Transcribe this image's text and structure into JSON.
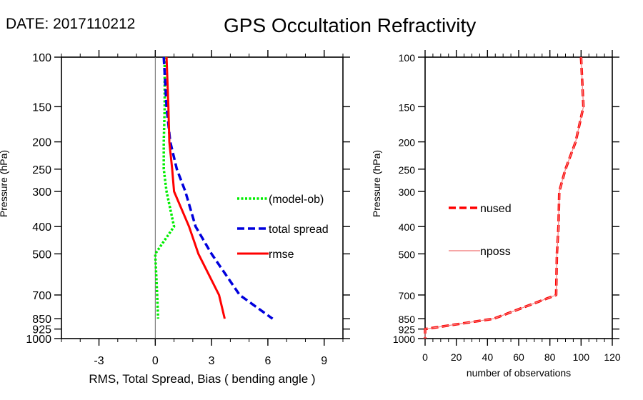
{
  "header": {
    "date_label": "DATE: 2017110212",
    "title": "GPS Occultation Refractivity"
  },
  "chart_data": [
    {
      "type": "line",
      "name": "error-profile",
      "xlabel": "RMS, Total Spread, Bias ( bending angle )",
      "ylabel": "Pressure (hPa)",
      "xlim": [
        -5,
        10
      ],
      "ylim": [
        1000,
        100
      ],
      "yscale": "log",
      "x_ticks": [
        -3,
        0,
        3,
        6,
        9
      ],
      "x_minor_step": 1,
      "y_ticks": [
        100,
        150,
        200,
        250,
        300,
        400,
        500,
        700,
        850,
        925,
        1000
      ],
      "zero_line": true,
      "legend_placement": "center-right",
      "pressure": [
        100,
        150,
        200,
        250,
        300,
        400,
        500,
        700,
        850
      ],
      "series": [
        {
          "name": "(model-ob)",
          "color": "#00ee00",
          "style": "dotted",
          "values": [
            0.5,
            0.5,
            0.45,
            0.45,
            0.6,
            1.0,
            0.0,
            0.1,
            0.15
          ]
        },
        {
          "name": "total spread",
          "color": "#0000dd",
          "style": "dashed",
          "values": [
            0.45,
            0.6,
            0.8,
            1.15,
            1.6,
            2.15,
            3.0,
            4.5,
            6.25
          ]
        },
        {
          "name": "rmse",
          "color": "#ff0000",
          "style": "solid",
          "values": [
            0.6,
            0.7,
            0.75,
            0.9,
            1.0,
            1.8,
            2.3,
            3.4,
            3.7
          ]
        }
      ]
    },
    {
      "type": "line",
      "name": "observation-count",
      "xlabel": "number of observations",
      "ylabel": "Pressure (hPa)",
      "xlim": [
        0,
        120
      ],
      "ylim": [
        1000,
        100
      ],
      "yscale": "log",
      "x_ticks": [
        0,
        20,
        40,
        60,
        80,
        100,
        120
      ],
      "x_minor_step": 5,
      "y_ticks": [
        100,
        150,
        200,
        250,
        300,
        400,
        500,
        700,
        850,
        925,
        1000
      ],
      "zero_line": false,
      "legend_placement": "center-left",
      "pressure": [
        100,
        150,
        200,
        250,
        300,
        400,
        500,
        700,
        850,
        925,
        1000
      ],
      "series": [
        {
          "name": "nused",
          "color": "#ff0000",
          "style": "dashed",
          "values": [
            100,
            101.5,
            96.5,
            90,
            86,
            85.5,
            84.5,
            84,
            44,
            0,
            0
          ]
        },
        {
          "name": "nposs",
          "color": "#f08080",
          "style": "thin",
          "values": [
            100,
            101.5,
            96.5,
            90,
            86,
            85.5,
            84.5,
            84,
            44,
            0,
            0
          ]
        }
      ]
    }
  ]
}
